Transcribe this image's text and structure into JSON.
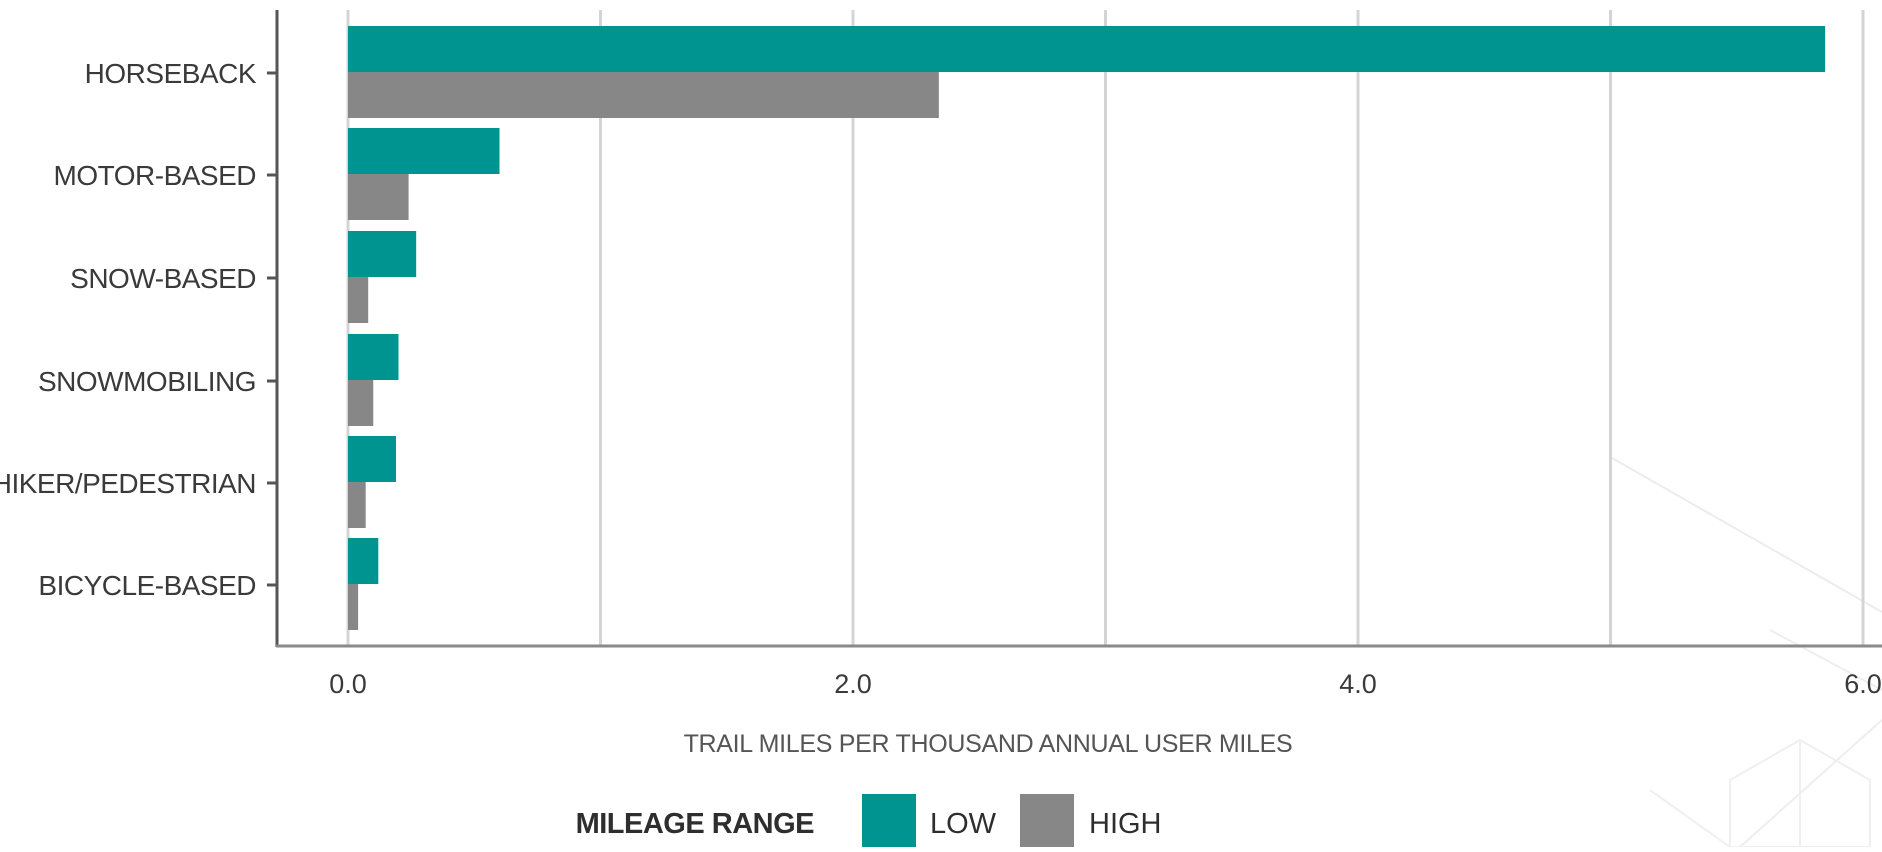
{
  "chart_data": {
    "type": "bar",
    "orientation": "horizontal",
    "categories": [
      "HORSEBACK",
      "MOTOR-BASED",
      "SNOW-BASED",
      "SNOWMOBILING",
      "HIKER/PEDESTRIAN",
      "BICYCLE-BASED"
    ],
    "series": [
      {
        "name": "LOW",
        "color": "#009490",
        "values": [
          5.85,
          0.6,
          0.27,
          0.2,
          0.19,
          0.12
        ]
      },
      {
        "name": "HIGH",
        "color": "#878787",
        "values": [
          2.34,
          0.24,
          0.08,
          0.1,
          0.07,
          0.04
        ]
      }
    ],
    "xlabel": "TRAIL MILES PER THOUSAND ANNUAL USER MILES",
    "ylabel": "",
    "xlim": [
      0,
      6.0
    ],
    "x_ticks": [
      "0.0",
      "2.0",
      "4.0",
      "6.0"
    ],
    "x_tick_values": [
      0,
      2,
      4,
      6
    ],
    "gridlines_at": [
      0,
      1,
      2,
      3,
      4,
      5,
      6
    ],
    "grid": true,
    "legend": {
      "title": "MILEAGE RANGE",
      "placement": "bottom-center"
    }
  },
  "colors": {
    "grid": "#d4d4d4",
    "axis": "#555555",
    "text": "#3a3a3a"
  }
}
